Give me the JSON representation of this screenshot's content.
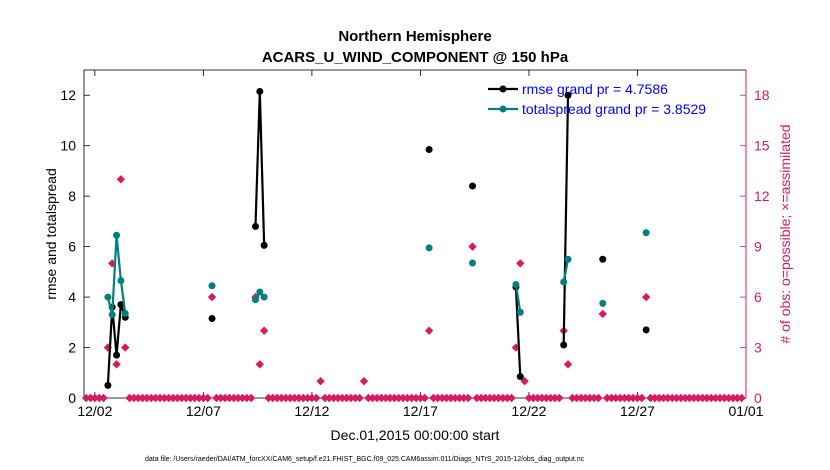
{
  "chart_data": {
    "type": "line",
    "title": "Northern Hemisphere",
    "subtitle": "ACARS_U_WIND_COMPONENT @ 150 hPa",
    "xlabel": "Dec.01,2015 00:00:00 start",
    "ylabel": "rmse and totalspread",
    "y2label": "# of obs: o=possible; ×=assimilated",
    "footnote": "data file: /Users/raeder/DAI/ATM_forcXX/CAM6_setup/f.e21.FHIST_BGC.f09_025.CAM6assim.011/Diags_NTrS_2015-12/obs_diag_output.nc",
    "xlim": [
      0.5,
      31
    ],
    "ylim": [
      0,
      13
    ],
    "y2lim": [
      0,
      19.5
    ],
    "xticks": [
      1,
      6,
      11,
      16,
      21,
      26,
      31
    ],
    "xtick_labels": [
      "12/02",
      "12/07",
      "12/12",
      "12/17",
      "12/22",
      "12/27",
      "01/01"
    ],
    "yticks": [
      0,
      2,
      4,
      6,
      8,
      10,
      12
    ],
    "y2ticks": [
      0,
      3,
      6,
      9,
      12,
      15,
      18
    ],
    "colors": {
      "rmse": "#000000",
      "spread": "#008080",
      "obs": "#d81b60",
      "legend_text": "#0000ff"
    },
    "series": [
      {
        "name": "rmse grand pr = 4.7586",
        "color": "#000000",
        "segments": [
          [
            [
              1.6,
              0.5
            ],
            [
              1.8,
              3.6
            ],
            [
              2.0,
              1.7
            ],
            [
              2.2,
              3.7
            ],
            [
              2.4,
              3.2
            ]
          ],
          [
            [
              8.4,
              6.8
            ],
            [
              8.6,
              12.15
            ],
            [
              8.8,
              6.05
            ]
          ],
          [
            [
              20.4,
              4.4
            ],
            [
              20.6,
              0.85
            ]
          ],
          [
            [
              22.6,
              2.1
            ],
            [
              22.8,
              12.0
            ]
          ]
        ],
        "points": [
          [
            6.4,
            3.15
          ],
          [
            16.4,
            9.85
          ],
          [
            18.4,
            8.4
          ],
          [
            26.4,
            2.7
          ],
          [
            24.4,
            5.5
          ]
        ]
      },
      {
        "name": "totalspread grand pr = 3.8529",
        "color": "#008080",
        "segments": [
          [
            [
              1.6,
              4.0
            ],
            [
              1.8,
              3.3
            ],
            [
              2.0,
              6.45
            ],
            [
              2.2,
              4.65
            ],
            [
              2.4,
              3.35
            ]
          ],
          [
            [
              8.4,
              3.9
            ],
            [
              8.6,
              4.2
            ],
            [
              8.8,
              4.0
            ]
          ],
          [
            [
              20.4,
              4.5
            ],
            [
              20.6,
              3.4
            ]
          ],
          [
            [
              22.6,
              4.6
            ],
            [
              22.8,
              5.5
            ]
          ]
        ],
        "points": [
          [
            6.4,
            4.45
          ],
          [
            16.4,
            5.95
          ],
          [
            18.4,
            5.35
          ],
          [
            24.4,
            3.75
          ],
          [
            26.4,
            6.55
          ]
        ]
      }
    ],
    "obs_possible": [
      [
        1.6,
        3
      ],
      [
        1.8,
        8
      ],
      [
        2.0,
        2
      ],
      [
        2.2,
        13
      ],
      [
        2.4,
        3
      ],
      [
        6.4,
        6
      ],
      [
        8.4,
        6
      ],
      [
        8.6,
        2
      ],
      [
        8.8,
        4
      ],
      [
        11.4,
        1
      ],
      [
        13.4,
        1
      ],
      [
        16.4,
        4
      ],
      [
        18.4,
        9
      ],
      [
        20.4,
        3
      ],
      [
        20.6,
        8
      ],
      [
        20.8,
        1
      ],
      [
        22.6,
        4
      ],
      [
        22.8,
        2
      ],
      [
        24.4,
        5
      ],
      [
        26.4,
        6
      ]
    ],
    "obs_zero_start": 0.6,
    "obs_zero_end": 30.8,
    "obs_zero_step": 0.2
  }
}
